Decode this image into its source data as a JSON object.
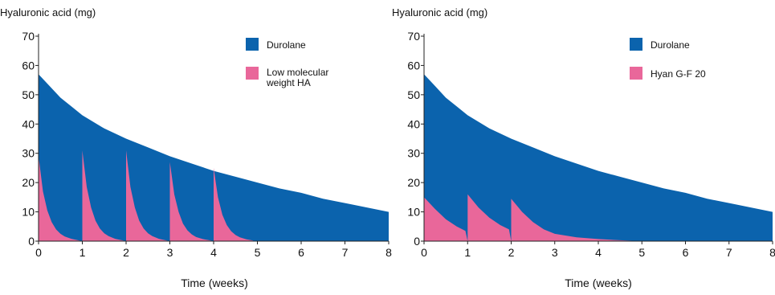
{
  "colors": {
    "durolane": "#0b63ad",
    "comparator": "#e9679a",
    "axis": "#222222"
  },
  "chart_data": [
    {
      "type": "area",
      "ylabel": "Hyaluronic acid (mg)",
      "xlabel": "Time (weeks)",
      "xlim": [
        0,
        8
      ],
      "ylim": [
        0,
        70
      ],
      "xticks": [
        "0",
        "1",
        "2",
        "3",
        "4",
        "5",
        "6",
        "7",
        "8"
      ],
      "yticks": [
        "0",
        "10",
        "20",
        "30",
        "40",
        "50",
        "60",
        "70"
      ],
      "legend_position": "top-right",
      "series": [
        {
          "name": "Durolane",
          "color": "#0b63ad",
          "x": [
            0,
            0.25,
            0.5,
            0.75,
            1,
            1.5,
            2,
            2.5,
            3,
            3.5,
            4,
            4.5,
            5,
            5.5,
            6,
            6.5,
            7,
            7.5,
            8
          ],
          "y": [
            57,
            53,
            49,
            46,
            43,
            38.5,
            35,
            32,
            29,
            26.5,
            24,
            22,
            20,
            18,
            16.5,
            14.5,
            13,
            11.5,
            10
          ]
        },
        {
          "name": "Low molecular weight HA",
          "color": "#e9679a",
          "x": [
            0,
            0.1,
            0.2,
            0.3,
            0.4,
            0.5,
            0.6,
            0.75,
            0.9,
            1,
            1.1,
            1.2,
            1.3,
            1.4,
            1.5,
            1.6,
            1.75,
            1.9,
            2,
            2.1,
            2.2,
            2.3,
            2.4,
            2.5,
            2.6,
            2.75,
            2.9,
            3,
            3.1,
            3.2,
            3.3,
            3.4,
            3.5,
            3.6,
            3.75,
            3.9,
            4,
            4.1,
            4.2,
            4.3,
            4.4,
            4.5,
            4.6,
            4.75,
            4.9
          ],
          "y": [
            29,
            17,
            10.5,
            6.5,
            4,
            2.5,
            1.6,
            0.8,
            0.3,
            31,
            18.5,
            11.5,
            7,
            4.3,
            2.7,
            1.7,
            0.8,
            0.3,
            31,
            18.5,
            11.5,
            7,
            4.3,
            2.7,
            1.7,
            0.8,
            0.3,
            27,
            16,
            10,
            6,
            3.7,
            2.3,
            1.4,
            0.7,
            0.3,
            25,
            15,
            9,
            5.5,
            3.4,
            2.1,
            1.3,
            0.6,
            0.2
          ]
        }
      ]
    },
    {
      "type": "area",
      "ylabel": "Hyaluronic acid (mg)",
      "xlabel": "Time (weeks)",
      "xlim": [
        0,
        8
      ],
      "ylim": [
        0,
        70
      ],
      "xticks": [
        "0",
        "1",
        "2",
        "3",
        "4",
        "5",
        "6",
        "7",
        "8"
      ],
      "yticks": [
        "0",
        "10",
        "20",
        "30",
        "40",
        "50",
        "60",
        "70"
      ],
      "legend_position": "top-right",
      "series": [
        {
          "name": "Durolane",
          "color": "#0b63ad",
          "x": [
            0,
            0.25,
            0.5,
            0.75,
            1,
            1.5,
            2,
            2.5,
            3,
            3.5,
            4,
            4.5,
            5,
            5.5,
            6,
            6.5,
            7,
            7.5,
            8
          ],
          "y": [
            57,
            53,
            49,
            46,
            43,
            38.5,
            35,
            32,
            29,
            26.5,
            24,
            22,
            20,
            18,
            16.5,
            14.5,
            13,
            11.5,
            10
          ]
        },
        {
          "name": "Hyan G-F 20",
          "color": "#e9679a",
          "x": [
            0,
            0.25,
            0.5,
            0.75,
            0.95,
            1,
            1.25,
            1.5,
            1.75,
            1.95,
            2,
            2.25,
            2.5,
            2.75,
            3,
            3.5,
            4,
            4.5,
            5
          ],
          "y": [
            15,
            11,
            7.5,
            5,
            3.5,
            16,
            11.5,
            8,
            5.5,
            4,
            14.5,
            10,
            6.5,
            4,
            2.5,
            1.3,
            0.7,
            0.3,
            0
          ]
        }
      ]
    }
  ]
}
